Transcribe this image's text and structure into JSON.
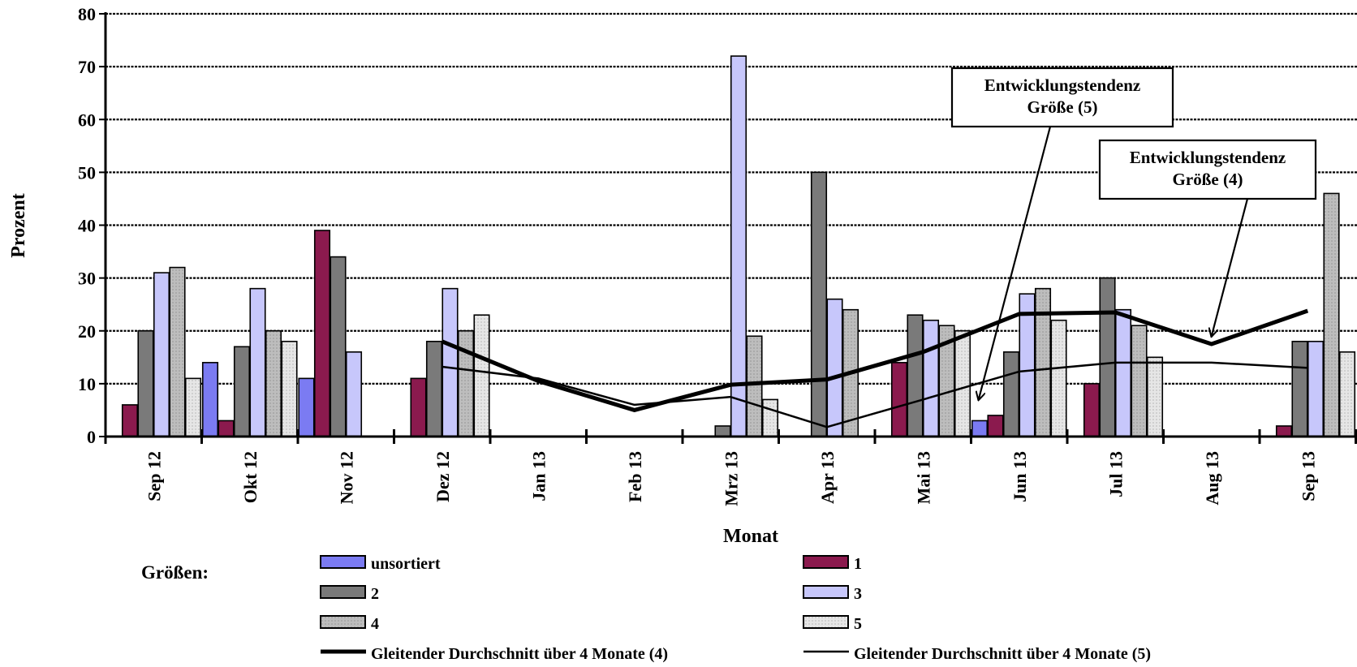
{
  "chart_data": {
    "type": "bar",
    "xlabel": "Monat",
    "ylabel": "Prozent",
    "ylim": [
      0,
      80
    ],
    "yticks": [
      0,
      10,
      20,
      30,
      40,
      50,
      60,
      70,
      80
    ],
    "grid": true,
    "categories": [
      "Sep 12",
      "Okt 12",
      "Nov 12",
      "Dez 12",
      "Jan 13",
      "Feb 13",
      "Mrz 13",
      "Apr 13",
      "Mai 13",
      "Jun 13",
      "Jul 13",
      "Aug 13",
      "Sep 13"
    ],
    "series": [
      {
        "name": "unsortiert",
        "color": "#7b7bf2",
        "values": [
          null,
          14,
          11,
          null,
          null,
          null,
          null,
          null,
          null,
          3,
          null,
          null,
          null
        ]
      },
      {
        "name": "1",
        "color": "#8b1a4e",
        "values": [
          6,
          3,
          39,
          11,
          null,
          null,
          null,
          null,
          14,
          4,
          10,
          null,
          2
        ]
      },
      {
        "name": "2",
        "color": "#7a7a7a",
        "values": [
          20,
          17,
          34,
          18,
          null,
          null,
          2,
          50,
          23,
          16,
          30,
          null,
          18
        ]
      },
      {
        "name": "3",
        "color": "#c7c7fb",
        "values": [
          31,
          28,
          16,
          28,
          null,
          null,
          72,
          26,
          22,
          27,
          24,
          null,
          18
        ]
      },
      {
        "name": "4",
        "color": "#bdbdbd",
        "values": [
          32,
          20,
          null,
          20,
          null,
          null,
          19,
          24,
          21,
          28,
          21,
          null,
          46
        ]
      },
      {
        "name": "5",
        "color": "#e6e6e6",
        "values": [
          11,
          18,
          null,
          23,
          null,
          null,
          7,
          null,
          20,
          22,
          15,
          null,
          16
        ]
      }
    ],
    "lines": [
      {
        "name": "Gleitender Durchschnitt über 4 Monate (4)",
        "stroke_width": 5,
        "x": [
          "Dez 12",
          "Jan 13",
          "Feb 13",
          "Mrz 13",
          "Apr 13",
          "Mai 13",
          "Jun 13",
          "Jul 13",
          "Aug 13",
          "Sep 13"
        ],
        "values": [
          18,
          10.5,
          5,
          9.8,
          10.8,
          16,
          23.2,
          23.5,
          17.5,
          23.8
        ]
      },
      {
        "name": "Gleitender Durchschnitt über 4 Monate (5)",
        "stroke_width": 2.5,
        "x": [
          "Dez 12",
          "Jan 13",
          "Feb 13",
          "Mrz 13",
          "Apr 13",
          "Mai 13",
          "Jun 13",
          "Jul 13",
          "Aug 13",
          "Sep 13"
        ],
        "values": [
          13.2,
          11,
          6,
          7.5,
          1.8,
          7,
          12.3,
          14,
          14,
          13
        ]
      }
    ],
    "annotations": [
      {
        "lines": [
          "Entwicklungstendenz",
          "Größe  (5)"
        ],
        "target_x": "Jun 13",
        "target_y": 7
      },
      {
        "lines": [
          "Entwicklungstendenz",
          "Größe  (4)"
        ],
        "target_x": "Aug 13",
        "target_y": 19
      }
    ],
    "legend": {
      "title": "Größen:",
      "position": "bottom",
      "entries": [
        {
          "label": "unsortiert",
          "kind": "bar",
          "color": "#7b7bf2"
        },
        {
          "label": "1",
          "kind": "bar",
          "color": "#8b1a4e"
        },
        {
          "label": "2",
          "kind": "bar",
          "color": "#7a7a7a"
        },
        {
          "label": "3",
          "kind": "bar",
          "color": "#c7c7fb"
        },
        {
          "label": "4",
          "kind": "bar",
          "color": "#bdbdbd"
        },
        {
          "label": "5",
          "kind": "bar",
          "color": "#e6e6e6"
        },
        {
          "label": "Gleitender Durchschnitt  über  4 Monate (4)",
          "kind": "line",
          "stroke_width": 5
        },
        {
          "label": "Gleitender Durchschnitt  über  4 Monate (5)",
          "kind": "line",
          "stroke_width": 2.5
        }
      ]
    }
  }
}
